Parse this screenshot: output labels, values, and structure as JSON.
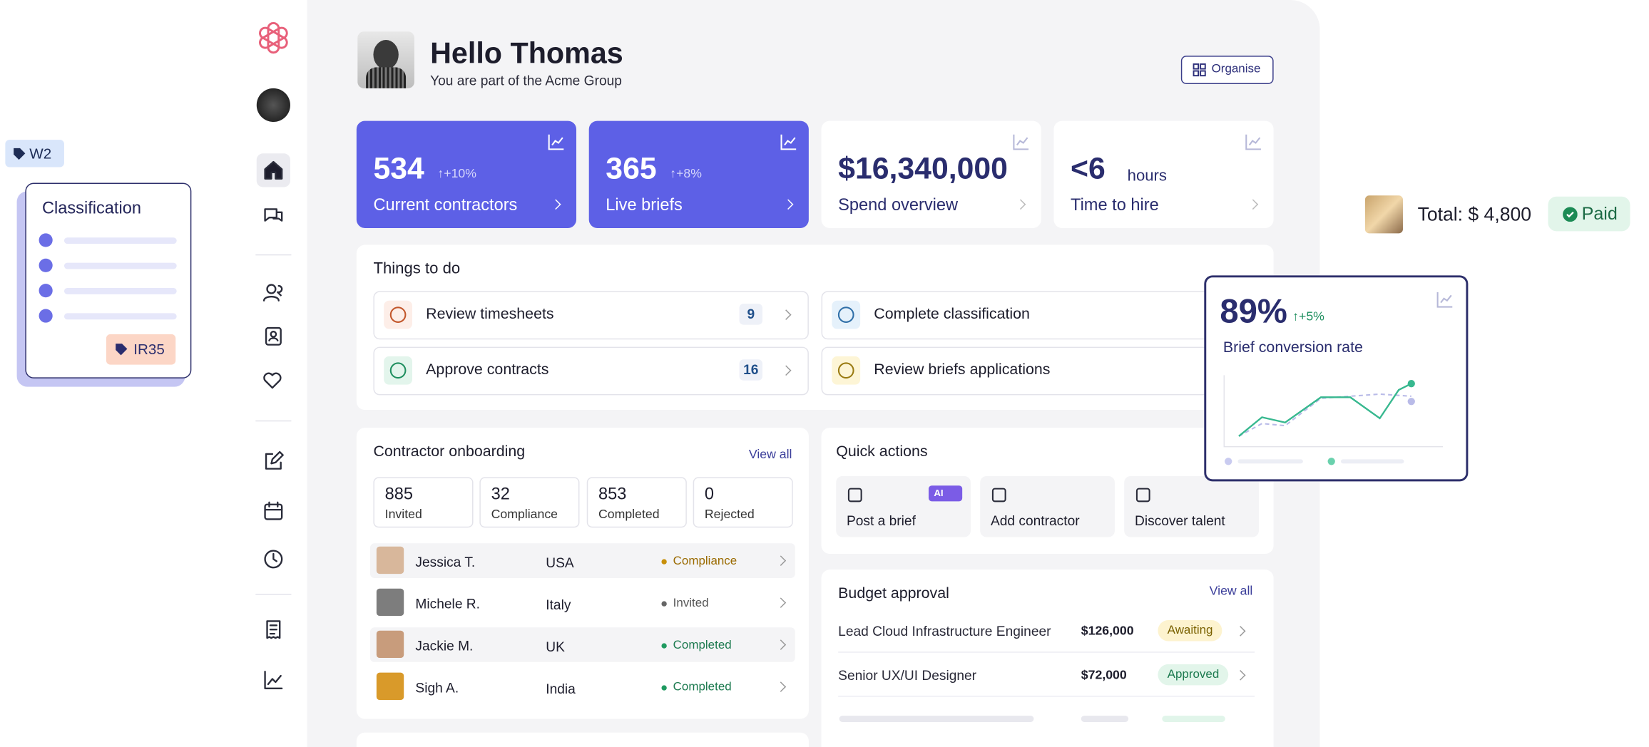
{
  "header": {
    "greeting": "Hello Thomas",
    "subtitle": "You are part of the Acme Group",
    "organise": "Organise"
  },
  "stats": [
    {
      "value": "534",
      "change": "+10%",
      "label": "Current contractors"
    },
    {
      "value": "365",
      "change": "+8%",
      "label": "Live briefs"
    },
    {
      "value": "$16,340,000",
      "label": "Spend overview"
    },
    {
      "value": "<6",
      "unit": "hours",
      "label": "Time to hire"
    }
  ],
  "todo": {
    "title": "Things to do",
    "items": [
      {
        "label": "Review timesheets",
        "count": "9"
      },
      {
        "label": "Complete classification"
      },
      {
        "label": "Approve contracts",
        "count": "16"
      },
      {
        "label": "Review briefs applications"
      }
    ]
  },
  "onboarding": {
    "title": "Contractor onboarding",
    "view_all": "View all",
    "summary": [
      {
        "value": "885",
        "label": "Invited"
      },
      {
        "value": "32",
        "label": "Compliance"
      },
      {
        "value": "853",
        "label": "Completed"
      },
      {
        "value": "0",
        "label": "Rejected"
      }
    ],
    "rows": [
      {
        "name": "Jessica T.",
        "country": "USA",
        "status": "Compliance"
      },
      {
        "name": "Michele R.",
        "country": "Italy",
        "status": "Invited"
      },
      {
        "name": "Jackie M.",
        "country": "UK",
        "status": "Completed"
      },
      {
        "name": "Sigh A.",
        "country": "India",
        "status": "Completed"
      }
    ]
  },
  "quick_actions": {
    "title": "Quick actions",
    "ai_badge": "AI",
    "actions": [
      "Post a brief",
      "Add contractor",
      "Discover talent"
    ]
  },
  "budget": {
    "title": "Budget approval",
    "view_all": "View all",
    "rows": [
      {
        "role": "Lead Cloud Infrastructure Engineer",
        "amount": "$126,000",
        "status": "Awaiting"
      },
      {
        "role": "Senior UX/UI Designer",
        "amount": "$72,000",
        "status": "Approved"
      }
    ]
  },
  "floating": {
    "w2": "W2",
    "classification": "Classification",
    "ir35": "IR35",
    "total": "Total: $ 4,800",
    "paid": "Paid",
    "conversion": {
      "value": "89%",
      "change": "+5%",
      "label": "Brief conversion rate"
    }
  }
}
